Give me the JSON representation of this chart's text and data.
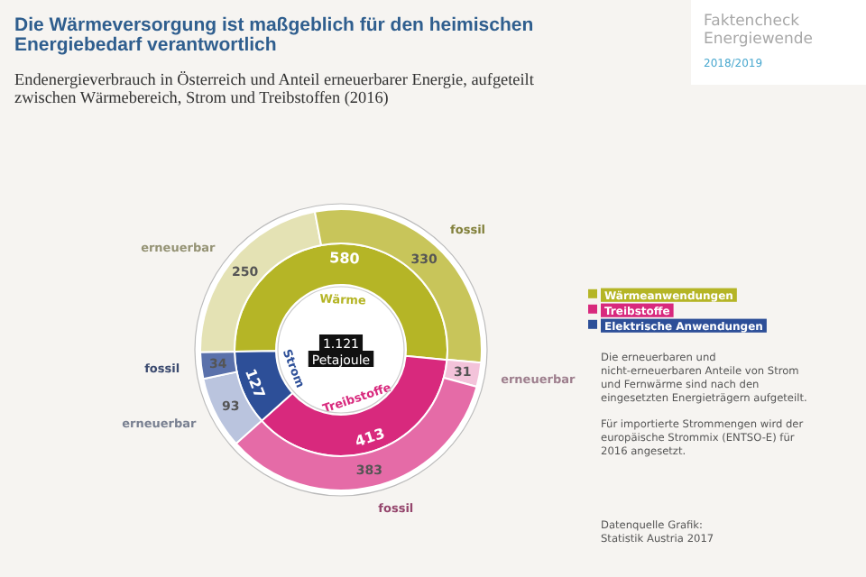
{
  "chart_data": [
    {
      "type": "donut",
      "title": "Die Wärmeversorgung ist maßgeblich für den heimischen Energiebedarf verantwortlich",
      "subtitle": "Endenergieverbrauch in Österreich und Anteil erneuerbarer Energie, aufgeteilt zwischen Wärmebereich, Strom und Treibstoffen (2016)",
      "categories": [
        "Wärmeanwendungen",
        "Treibstoffe",
        "Elektrische Anwendungen"
      ],
      "values": [
        580,
        413,
        127
      ],
      "colors": [
        "#b5b526",
        "#d8297d",
        "#2d4f98"
      ],
      "data_labels": true,
      "legend": "right",
      "annotations": [
        {
          "text": "Wärme",
          "x": "Wärmeanwendungen"
        },
        {
          "text": "Treibstoffe",
          "x": "Treibstoffe"
        },
        {
          "text": "Strom",
          "x": "Elektrische Anwendungen"
        },
        "Die erneuerbaren und nicht-erneuerbaren Anteile von Strom und Fernwärme sind nach den eingesetzten Energieträgern aufgeteilt.",
        "Für importierte Strommengen wird der europäische Strommix (ENTSO-E) für 2016 angesetzt.",
        "Datenquelle Grafik: Statistik Austria 2017"
      ]
    },
    {
      "type": "donut",
      "title": "Faktencheck Energiewende",
      "subtitle": "2018/2019",
      "categories": [
        "erneuerbar",
        "fossil",
        "erneuerbar",
        "fossil",
        "erneuerbar",
        "fossil"
      ],
      "values": [
        250,
        330,
        31,
        383,
        93,
        34
      ],
      "colors": [
        "#e4e2b4",
        "#c8c55a",
        "#f3c3da",
        "#e56ba7",
        "#bac4de",
        "#5a71ab"
      ],
      "data_labels": true,
      "annotations": [
        "1.121",
        "Petajoule"
      ]
    }
  ]
}
